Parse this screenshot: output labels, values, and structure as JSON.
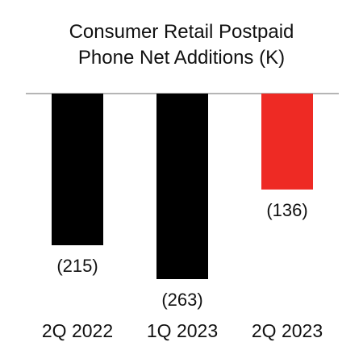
{
  "chart_data": {
    "type": "bar",
    "title_lines": [
      "Consumer Retail Postpaid",
      "Phone Net Additions (K)"
    ],
    "categories": [
      "2Q 2022",
      "1Q 2023",
      "2Q 2023"
    ],
    "values": [
      -215,
      -263,
      -136
    ],
    "value_labels": [
      "(215)",
      "(263)",
      "(136)"
    ],
    "bar_colors": [
      "#000000",
      "#000000",
      "#ee2a24"
    ],
    "baseline_color": "#b5b5b5",
    "ylim": [
      -263,
      0
    ],
    "grid": false,
    "legend": "none",
    "xlabel": "",
    "ylabel": ""
  }
}
